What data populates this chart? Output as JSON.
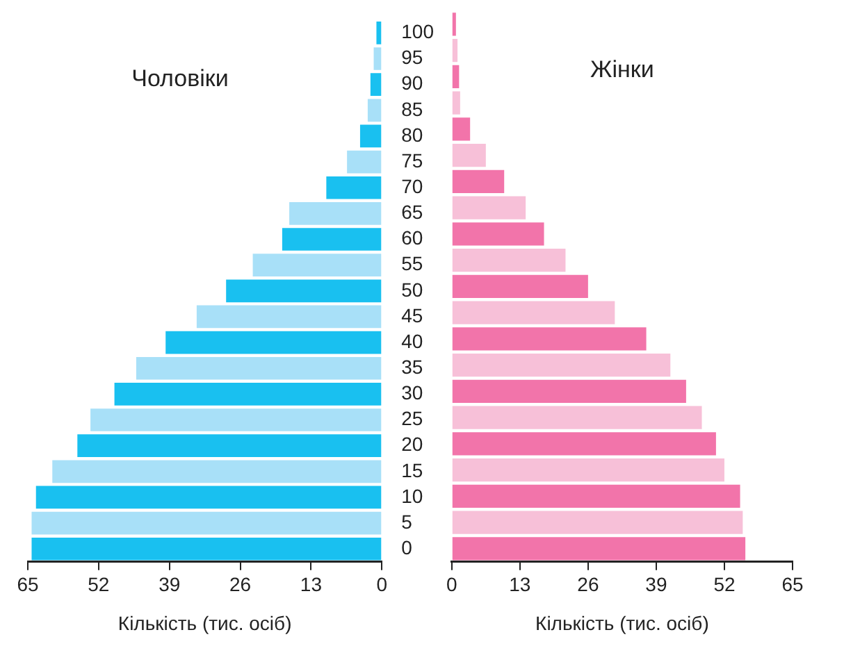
{
  "chart_data": [
    {
      "type": "bar",
      "orientation": "horizontal",
      "title": "Чоловіки",
      "xlabel": "Кількість (тис. осіб)",
      "categories": [
        "100",
        "95",
        "90",
        "85",
        "80",
        "75",
        "70",
        "65",
        "60",
        "55",
        "50",
        "45",
        "40",
        "35",
        "30",
        "25",
        "20",
        "15",
        "10",
        "5",
        "0"
      ],
      "values": [
        1.0,
        1.5,
        2.1,
        2.6,
        4.0,
        6.4,
        10.2,
        17.0,
        18.3,
        23.7,
        28.6,
        34.0,
        39.7,
        45.1,
        49.1,
        53.5,
        55.9,
        60.5,
        63.5,
        64.3,
        64.3
      ],
      "colors": [
        "#19c0f0",
        "#a8e0f8",
        "#19c0f0",
        "#a8e0f8",
        "#19c0f0",
        "#a8e0f8",
        "#19c0f0",
        "#a8e0f8",
        "#19c0f0",
        "#a8e0f8",
        "#19c0f0",
        "#a8e0f8",
        "#19c0f0",
        "#a8e0f8",
        "#19c0f0",
        "#a8e0f8",
        "#19c0f0",
        "#a8e0f8",
        "#19c0f0",
        "#a8e0f8",
        "#19c0f0"
      ],
      "xlim": [
        65,
        0
      ],
      "xticks": [
        65,
        52,
        39,
        26,
        13,
        0
      ]
    },
    {
      "type": "bar",
      "orientation": "horizontal",
      "title": "Жінки",
      "xlabel": "Кількість (тис. осіб)",
      "categories": [
        "100",
        "95",
        "90",
        "85",
        "80",
        "75",
        "70",
        "65",
        "60",
        "55",
        "50",
        "45",
        "40",
        "35",
        "30",
        "25",
        "20",
        "15",
        "10",
        "5",
        "0"
      ],
      "values": [
        0.8,
        1.1,
        1.4,
        1.6,
        3.5,
        6.5,
        10.0,
        14.1,
        17.6,
        21.7,
        26.0,
        31.1,
        37.1,
        41.7,
        44.7,
        47.7,
        50.4,
        52.0,
        55.0,
        55.5,
        56.0
      ],
      "colors": [
        "#f274aa",
        "#f7c0d8",
        "#f274aa",
        "#f7c0d8",
        "#f274aa",
        "#f7c0d8",
        "#f274aa",
        "#f7c0d8",
        "#f274aa",
        "#f7c0d8",
        "#f274aa",
        "#f7c0d8",
        "#f274aa",
        "#f7c0d8",
        "#f274aa",
        "#f7c0d8",
        "#f274aa",
        "#f7c0d8",
        "#f274aa",
        "#f7c0d8",
        "#f274aa"
      ],
      "xlim": [
        0,
        65
      ],
      "xticks": [
        0,
        13,
        26,
        39,
        52,
        65
      ],
      "tick_labels": "x"
    }
  ]
}
